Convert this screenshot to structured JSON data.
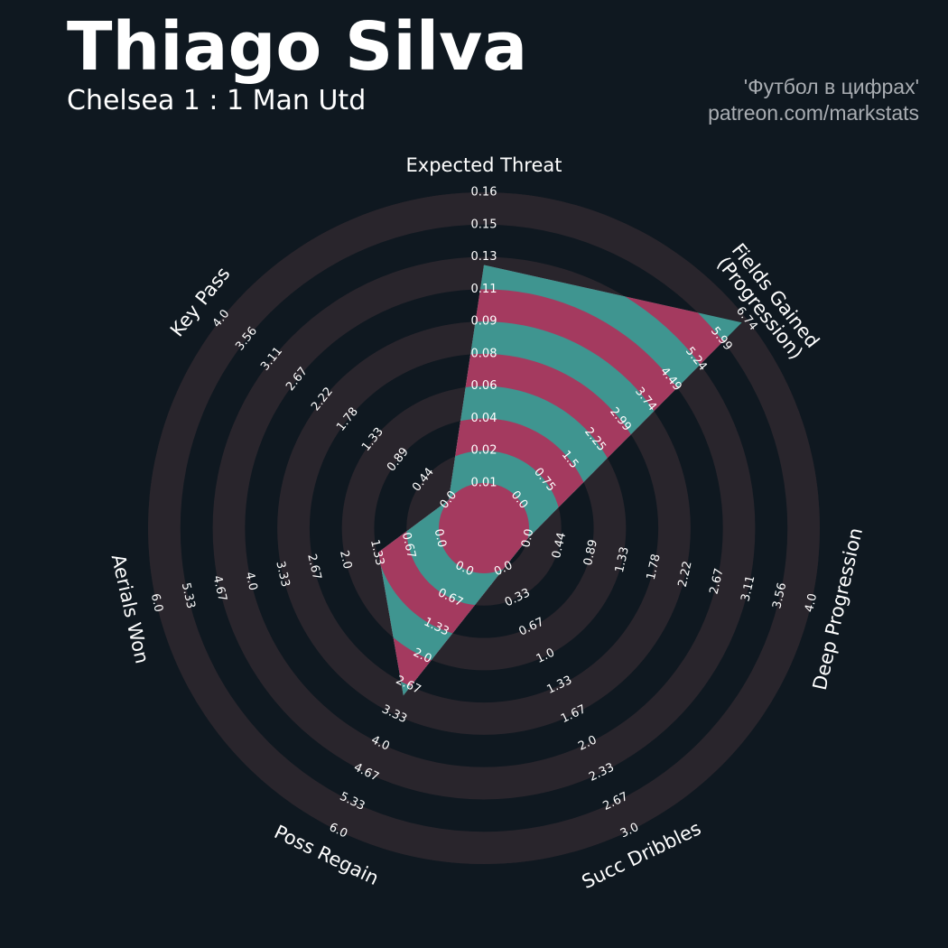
{
  "header": {
    "player_name": "Thiago Silva",
    "match": "Chelsea 1 : 1 Man Utd",
    "credit_line1": "'Футбол в цифрах'",
    "credit_line2": "patreon.com/markstats"
  },
  "colors": {
    "background": "#0f1820",
    "ring_fill": "#29252c",
    "ring_gap": "#0f1820",
    "value_teal": "#3f9590",
    "value_magenta": "#a43a5f",
    "text": "#ffffff"
  },
  "chart_data": {
    "type": "radar",
    "params": [
      "Expected Threat",
      "Fields Gained (Progression)",
      "Deep Progression",
      "Succ Dribbles",
      "Poss Regain",
      "Aerials Won",
      "Key Pass"
    ],
    "param_label_lines": [
      [
        "Expected Threat"
      ],
      [
        "Fields Gained",
        "(Progression)"
      ],
      [
        "Deep Progression"
      ],
      [
        "Succ Dribbles"
      ],
      [
        "Poss Regain"
      ],
      [
        "Aerials Won"
      ],
      [
        "Key Pass"
      ]
    ],
    "ranges": [
      [
        0.0,
        0.16
      ],
      [
        0.0,
        6.74
      ],
      [
        0.0,
        4.0
      ],
      [
        0.0,
        3.0
      ],
      [
        0.0,
        6.0
      ],
      [
        0.0,
        6.0
      ],
      [
        0.0,
        4.0
      ]
    ],
    "values": [
      0.12,
      6.6,
      0.0,
      0.0,
      2.9,
      1.3,
      0.0
    ],
    "tick_labels": [
      [
        "0.01",
        "0.02",
        "0.04",
        "0.06",
        "0.08",
        "0.09",
        "0.11",
        "0.13",
        "0.15",
        "0.16"
      ],
      [
        "0.0",
        "0.75",
        "1.5",
        "2.25",
        "2.99",
        "3.74",
        "4.49",
        "5.24",
        "5.99",
        "6.74"
      ],
      [
        "0.0",
        "0.44",
        "0.89",
        "1.33",
        "1.78",
        "2.22",
        "2.67",
        "3.11",
        "3.56",
        "4.0"
      ],
      [
        "0.0",
        "0.33",
        "0.67",
        "1.0",
        "1.33",
        "1.67",
        "2.0",
        "2.33",
        "2.67",
        "3.0"
      ],
      [
        "0.0",
        "0.67",
        "1.33",
        "2.0",
        "2.67",
        "3.33",
        "4.0",
        "4.67",
        "5.33",
        "6.0"
      ],
      [
        "0.0",
        "0.67",
        "1.33",
        "2.0",
        "2.67",
        "3.33",
        "4.0",
        "4.67",
        "5.33",
        "6.0"
      ],
      [
        "0.0",
        "0.44",
        "0.89",
        "1.33",
        "1.78",
        "2.22",
        "2.67",
        "3.11",
        "3.56",
        "4.0"
      ]
    ]
  }
}
